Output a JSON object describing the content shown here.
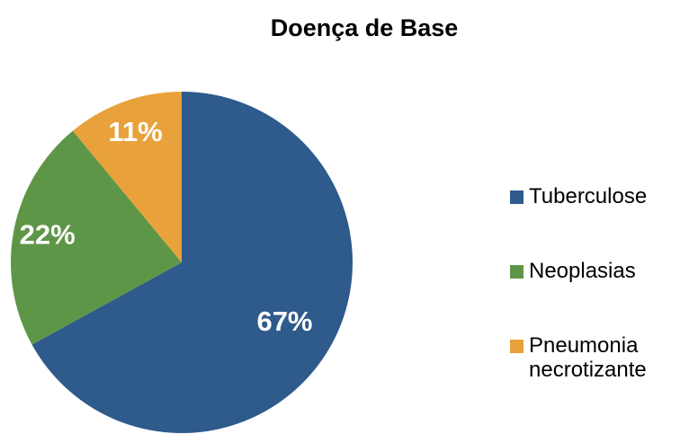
{
  "chart_data": {
    "type": "pie",
    "title": "Doença de Base",
    "categories": [
      "Tuberculose",
      "Neoplasias",
      "Pneumonia necrotizante"
    ],
    "values": [
      67,
      22,
      11
    ],
    "value_labels": [
      "67%",
      "22%",
      "11%"
    ],
    "colors": [
      "#2e5a8c",
      "#5e9647",
      "#e9a23b"
    ],
    "legend": "right"
  }
}
